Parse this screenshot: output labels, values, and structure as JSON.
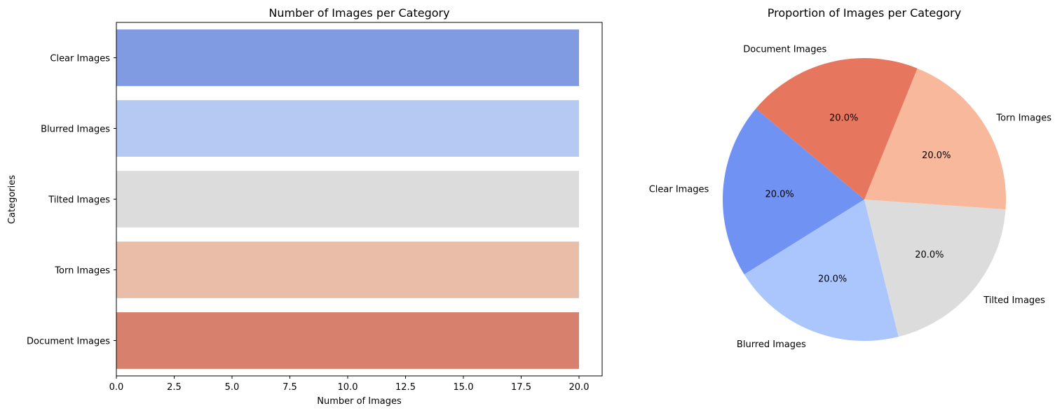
{
  "chart_data": [
    {
      "type": "bar",
      "orientation": "horizontal",
      "title": "Number of Images per Category",
      "xlabel": "Number of Images",
      "ylabel": "Categories",
      "categories": [
        "Clear Images",
        "Blurred Images",
        "Tilted Images",
        "Torn Images",
        "Document Images"
      ],
      "values": [
        20,
        20,
        20,
        20,
        20
      ],
      "colors": [
        "#819bE3",
        "#b5c9f2",
        "#dcdcdc",
        "#eabda8",
        "#d6806d"
      ],
      "xlim": [
        0,
        21
      ],
      "xticks": [
        "0.0",
        "2.5",
        "5.0",
        "7.5",
        "10.0",
        "12.5",
        "15.0",
        "17.5",
        "20.0"
      ],
      "xtick_values": [
        0,
        2.5,
        5,
        7.5,
        10,
        12.5,
        15,
        17.5,
        20
      ],
      "grid": false
    },
    {
      "type": "pie",
      "title": "Proportion of Images per Category",
      "labels": [
        "Clear Images",
        "Blurred Images",
        "Tilted Images",
        "Torn Images",
        "Document Images"
      ],
      "values": [
        20,
        20,
        20,
        20,
        20
      ],
      "percent_labels": [
        "20.0%",
        "20.0%",
        "20.0%",
        "20.0%",
        "20.0%"
      ],
      "colors": [
        "#7092f2",
        "#aac6fd",
        "#dcdcdc",
        "#f7b89b",
        "#e7765e"
      ],
      "startangle": 140,
      "direction": "counterclockwise"
    }
  ]
}
